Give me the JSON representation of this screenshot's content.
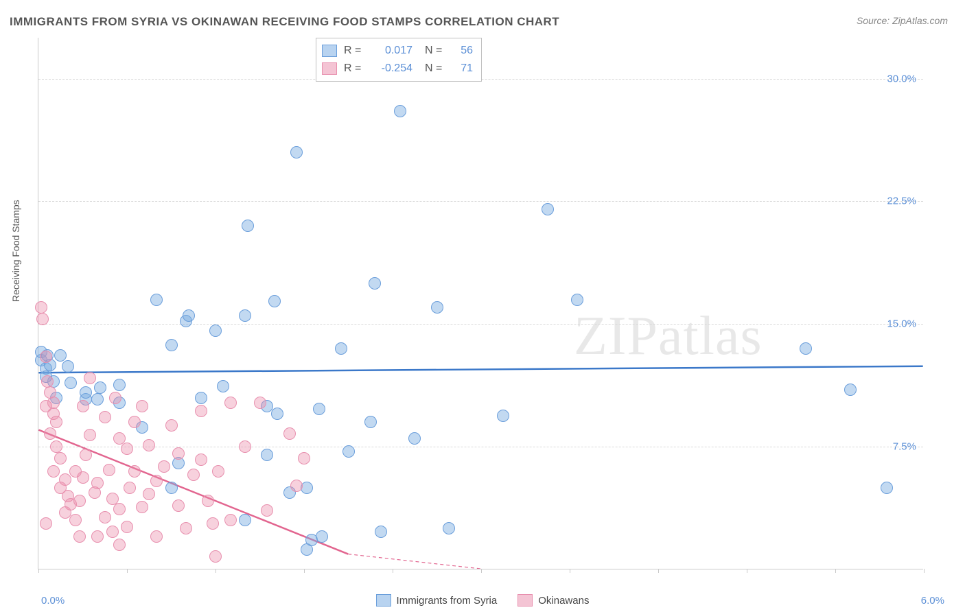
{
  "title": "IMMIGRANTS FROM SYRIA VS OKINAWAN RECEIVING FOOD STAMPS CORRELATION CHART",
  "source": "Source: ZipAtlas.com",
  "y_axis_label": "Receiving Food Stamps",
  "watermark_bold": "ZIP",
  "watermark_light": "atlas",
  "chart": {
    "type": "scatter",
    "background_color": "#ffffff",
    "grid_color": "#d8d8d8",
    "axis_color": "#c8c8c8",
    "x_domain": [
      0.0,
      6.0
    ],
    "y_domain": [
      0.0,
      32.5
    ],
    "x_tick_positions": [
      0.0,
      0.6,
      1.2,
      1.8,
      2.4,
      3.0,
      3.6,
      4.2,
      4.8,
      5.4,
      6.0
    ],
    "x_label_min": "0.0%",
    "x_label_max": "6.0%",
    "y_ticks": [
      {
        "value": 30.0,
        "label": "30.0%"
      },
      {
        "value": 22.5,
        "label": "22.5%"
      },
      {
        "value": 15.0,
        "label": "15.0%"
      },
      {
        "value": 7.5,
        "label": "7.5%"
      }
    ],
    "series": [
      {
        "name": "Immigrants from Syria",
        "fill_color": "rgba(120,170,225,0.45)",
        "stroke_color": "#6a9edb",
        "swatch_fill": "#b8d3f0",
        "swatch_border": "#6a9edb",
        "trend_color": "#3b78c9",
        "trend_width": 2.5,
        "R": "0.017",
        "N": "56",
        "trend": {
          "x1": 0.0,
          "y1": 12.0,
          "x2": 6.0,
          "y2": 12.4
        },
        "points": [
          [
            0.02,
            12.8
          ],
          [
            0.02,
            13.3
          ],
          [
            0.05,
            12.3
          ],
          [
            0.06,
            13.1
          ],
          [
            0.1,
            11.5
          ],
          [
            0.12,
            10.5
          ],
          [
            0.15,
            13.1
          ],
          [
            0.22,
            11.4
          ],
          [
            0.32,
            10.4
          ],
          [
            0.32,
            10.8
          ],
          [
            0.4,
            10.4
          ],
          [
            0.42,
            11.1
          ],
          [
            0.55,
            11.3
          ],
          [
            0.55,
            10.2
          ],
          [
            0.8,
            16.5
          ],
          [
            0.9,
            13.7
          ],
          [
            0.95,
            6.5
          ],
          [
            1.0,
            15.2
          ],
          [
            1.02,
            15.5
          ],
          [
            1.1,
            10.5
          ],
          [
            1.2,
            14.6
          ],
          [
            1.4,
            15.5
          ],
          [
            1.42,
            21.0
          ],
          [
            1.55,
            7.0
          ],
          [
            1.6,
            16.4
          ],
          [
            1.62,
            9.5
          ],
          [
            1.7,
            4.7
          ],
          [
            1.82,
            1.2
          ],
          [
            1.85,
            1.8
          ],
          [
            1.82,
            5.0
          ],
          [
            1.75,
            25.5
          ],
          [
            1.9,
            9.8
          ],
          [
            1.92,
            2.0
          ],
          [
            2.05,
            13.5
          ],
          [
            2.25,
            9.0
          ],
          [
            2.28,
            17.5
          ],
          [
            2.32,
            2.3
          ],
          [
            2.45,
            28.0
          ],
          [
            2.55,
            8.0
          ],
          [
            2.7,
            16.0
          ],
          [
            2.78,
            2.5
          ],
          [
            3.15,
            9.4
          ],
          [
            3.45,
            22.0
          ],
          [
            3.65,
            16.5
          ],
          [
            5.2,
            13.5
          ],
          [
            5.5,
            11.0
          ],
          [
            5.75,
            5.0
          ],
          [
            0.05,
            11.8
          ],
          [
            0.08,
            12.5
          ],
          [
            0.2,
            12.4
          ],
          [
            0.7,
            8.7
          ],
          [
            1.25,
            11.2
          ],
          [
            1.55,
            10.0
          ],
          [
            2.1,
            7.2
          ],
          [
            0.9,
            5.0
          ],
          [
            1.4,
            3.0
          ]
        ]
      },
      {
        "name": "Okinawans",
        "fill_color": "rgba(235,140,170,0.40)",
        "stroke_color": "#e88fae",
        "swatch_fill": "#f4c4d4",
        "swatch_border": "#e88fae",
        "trend_color": "#e2658f",
        "trend_width": 2.5,
        "R": "-0.254",
        "N": "71",
        "trend": {
          "x1": 0.0,
          "y1": 8.5,
          "x2": 2.1,
          "y2": 0.9
        },
        "trend_dash_extension": {
          "x1": 2.1,
          "y1": 0.9,
          "x2": 3.0,
          "y2": -2.3
        },
        "points": [
          [
            0.02,
            16.0
          ],
          [
            0.03,
            15.3
          ],
          [
            0.05,
            13.0
          ],
          [
            0.06,
            11.5
          ],
          [
            0.08,
            10.8
          ],
          [
            0.05,
            10.0
          ],
          [
            0.1,
            9.5
          ],
          [
            0.12,
            9.0
          ],
          [
            0.1,
            10.2
          ],
          [
            0.08,
            8.3
          ],
          [
            0.12,
            7.5
          ],
          [
            0.15,
            6.8
          ],
          [
            0.1,
            6.0
          ],
          [
            0.18,
            5.5
          ],
          [
            0.15,
            5.0
          ],
          [
            0.2,
            4.5
          ],
          [
            0.22,
            4.0
          ],
          [
            0.18,
            3.5
          ],
          [
            0.25,
            3.0
          ],
          [
            0.28,
            4.2
          ],
          [
            0.25,
            6.0
          ],
          [
            0.3,
            5.6
          ],
          [
            0.32,
            7.0
          ],
          [
            0.3,
            10.0
          ],
          [
            0.35,
            11.7
          ],
          [
            0.35,
            8.2
          ],
          [
            0.38,
            4.7
          ],
          [
            0.4,
            2.0
          ],
          [
            0.4,
            5.3
          ],
          [
            0.45,
            3.2
          ],
          [
            0.45,
            9.3
          ],
          [
            0.48,
            6.1
          ],
          [
            0.5,
            4.3
          ],
          [
            0.5,
            2.3
          ],
          [
            0.52,
            10.5
          ],
          [
            0.55,
            8.0
          ],
          [
            0.55,
            1.5
          ],
          [
            0.55,
            3.7
          ],
          [
            0.6,
            2.6
          ],
          [
            0.6,
            7.4
          ],
          [
            0.62,
            5.0
          ],
          [
            0.65,
            6.0
          ],
          [
            0.65,
            9.0
          ],
          [
            0.7,
            3.8
          ],
          [
            0.7,
            10.0
          ],
          [
            0.75,
            4.6
          ],
          [
            0.75,
            7.6
          ],
          [
            0.8,
            5.4
          ],
          [
            0.8,
            2.0
          ],
          [
            0.85,
            6.3
          ],
          [
            0.9,
            8.8
          ],
          [
            0.95,
            7.1
          ],
          [
            0.95,
            3.9
          ],
          [
            1.0,
            2.5
          ],
          [
            1.05,
            5.8
          ],
          [
            1.1,
            6.7
          ],
          [
            1.1,
            9.7
          ],
          [
            1.15,
            4.2
          ],
          [
            1.18,
            2.8
          ],
          [
            1.2,
            0.8
          ],
          [
            1.22,
            6.0
          ],
          [
            1.3,
            10.2
          ],
          [
            1.3,
            3.0
          ],
          [
            1.4,
            7.5
          ],
          [
            1.5,
            10.2
          ],
          [
            1.55,
            3.6
          ],
          [
            1.7,
            8.3
          ],
          [
            1.75,
            5.1
          ],
          [
            1.8,
            6.8
          ],
          [
            0.28,
            2.0
          ],
          [
            0.05,
            2.8
          ]
        ]
      }
    ]
  },
  "bottom_legend": [
    {
      "label": "Immigrants from Syria",
      "fill": "#b8d3f0",
      "border": "#6a9edb"
    },
    {
      "label": "Okinawans",
      "fill": "#f4c4d4",
      "border": "#e88fae"
    }
  ]
}
